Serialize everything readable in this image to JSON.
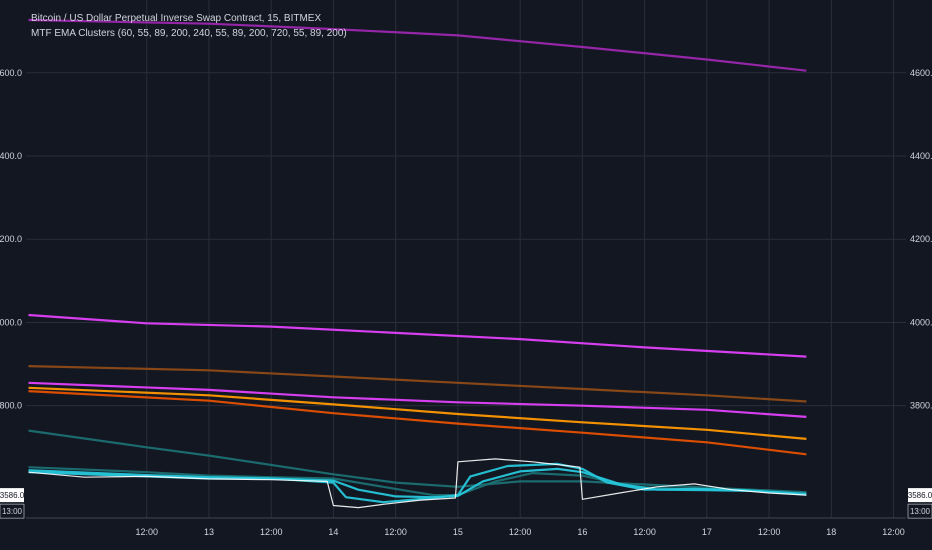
{
  "header": {
    "title": "Bitcoin / US Dollar Perpetual Inverse Swap Contract, 15, BITMEX",
    "indicator": "MTF EMA Clusters (60, 55, 89, 200, 240, 55, 89, 200, 720, 55, 89, 200)"
  },
  "colors": {
    "background": "#131722",
    "grid": "#2a2e39",
    "axis_text": "#d1d4dc",
    "magenta": "#e040fb",
    "purple": "#9c27b0",
    "dark_purple": "#7b1fa2",
    "orange": "#ff9800",
    "dark_orange": "#e65100",
    "brown": "#8d4a17",
    "cyan": "#26c6da",
    "dark_cyan": "#1b6f73",
    "candle_up": "#ffffff",
    "candle_down": "#ff1744"
  },
  "chart_data": {
    "type": "line",
    "y_ticks": [
      3800,
      4000,
      4200,
      4400,
      4600
    ],
    "y_tick_labels": [
      "3800.0",
      "4000.0",
      "4200.0",
      "4400.0",
      "4600.0"
    ],
    "ylim": [
      3530,
      4775
    ],
    "x_tick_labels": [
      "12:00",
      "13",
      "12:00",
      "14",
      "12:00",
      "15",
      "12:00",
      "16",
      "12:00",
      "17",
      "12:00",
      "18",
      "12:00"
    ],
    "x_tick_positions": [
      0.5,
      1.0,
      1.5,
      2.0,
      2.5,
      3.0,
      3.5,
      4.0,
      4.5,
      5.0,
      5.5,
      6.0,
      6.5
    ],
    "xlim": [
      -0.47,
      6.6
    ],
    "last_price_label": "3586.0",
    "last_time_label": "13:00",
    "series": [
      {
        "color_key": "purple",
        "x": [
          -0.45,
          1.0,
          2.0,
          3.0,
          4.0,
          5.0,
          5.8
        ],
        "y": [
          4727,
          4718,
          4705,
          4690,
          4662,
          4632,
          4605
        ]
      },
      {
        "color_key": "magenta",
        "x": [
          -0.45,
          0.5,
          1.5,
          2.5,
          3.5,
          4.5,
          5.8
        ],
        "y": [
          4018,
          3998,
          3990,
          3975,
          3960,
          3940,
          3918
        ]
      },
      {
        "color_key": "brown",
        "x": [
          -0.45,
          1.0,
          2.0,
          3.0,
          4.0,
          5.0,
          5.8
        ],
        "y": [
          3895,
          3885,
          3870,
          3855,
          3840,
          3825,
          3810
        ]
      },
      {
        "color_key": "magenta",
        "x": [
          -0.45,
          1.0,
          2.0,
          3.0,
          4.0,
          5.0,
          5.8
        ],
        "y": [
          3855,
          3838,
          3820,
          3808,
          3800,
          3790,
          3773
        ]
      },
      {
        "color_key": "orange",
        "x": [
          -0.45,
          1.0,
          2.0,
          3.0,
          4.0,
          5.0,
          5.8
        ],
        "y": [
          3843,
          3825,
          3803,
          3780,
          3760,
          3742,
          3720
        ]
      },
      {
        "color_key": "dark_orange",
        "x": [
          -0.45,
          1.0,
          2.0,
          3.0,
          4.0,
          5.0,
          5.8
        ],
        "y": [
          3835,
          3812,
          3782,
          3757,
          3735,
          3712,
          3683
        ]
      },
      {
        "color_key": "dark_cyan",
        "x": [
          -0.45,
          0.5,
          1.0,
          2.0,
          2.5,
          3.0,
          3.5,
          4.0,
          5.0,
          5.8
        ],
        "y": [
          3740,
          3700,
          3680,
          3635,
          3615,
          3605,
          3618,
          3618,
          3603,
          3592
        ]
      },
      {
        "color_key": "dark_cyan",
        "x": [
          -0.45,
          0.5,
          1.0,
          1.5,
          2.0,
          2.5,
          2.8,
          3.0,
          3.3,
          3.6,
          4.0,
          4.4,
          4.8,
          5.2,
          5.8
        ],
        "y": [
          3652,
          3640,
          3632,
          3628,
          3625,
          3600,
          3585,
          3585,
          3618,
          3638,
          3632,
          3605,
          3600,
          3598,
          3590
        ]
      },
      {
        "color_key": "cyan",
        "x": [
          -0.45,
          0.5,
          1.0,
          1.5,
          2.0,
          2.2,
          2.5,
          2.8,
          3.0,
          3.2,
          3.5,
          3.8,
          4.0,
          4.3,
          4.6,
          5.0,
          5.4,
          5.8
        ],
        "y": [
          3645,
          3633,
          3628,
          3625,
          3620,
          3598,
          3582,
          3580,
          3583,
          3618,
          3642,
          3648,
          3640,
          3612,
          3598,
          3597,
          3595,
          3588
        ]
      },
      {
        "color_key": "cyan",
        "x": [
          -0.45,
          0.5,
          1.0,
          1.5,
          2.0,
          2.1,
          2.4,
          2.8,
          3.0,
          3.1,
          3.4,
          3.8,
          4.0,
          4.2,
          4.5,
          4.9,
          5.3,
          5.8
        ],
        "y": [
          3640,
          3630,
          3625,
          3625,
          3615,
          3580,
          3568,
          3578,
          3585,
          3630,
          3655,
          3660,
          3648,
          3615,
          3598,
          3600,
          3597,
          3586
        ]
      },
      {
        "color_key": "candle_up",
        "x": [
          -0.45,
          0.0,
          0.5,
          1.0,
          1.5,
          1.95,
          2.0,
          2.2,
          2.4,
          2.7,
          2.98,
          3.0,
          3.3,
          3.6,
          3.9,
          3.98,
          4.0,
          4.3,
          4.6,
          4.9,
          5.2,
          5.5,
          5.8
        ],
        "y": [
          3640,
          3628,
          3630,
          3624,
          3622,
          3618,
          3560,
          3555,
          3563,
          3573,
          3578,
          3665,
          3672,
          3665,
          3655,
          3652,
          3575,
          3590,
          3605,
          3612,
          3598,
          3590,
          3585
        ]
      }
    ]
  }
}
